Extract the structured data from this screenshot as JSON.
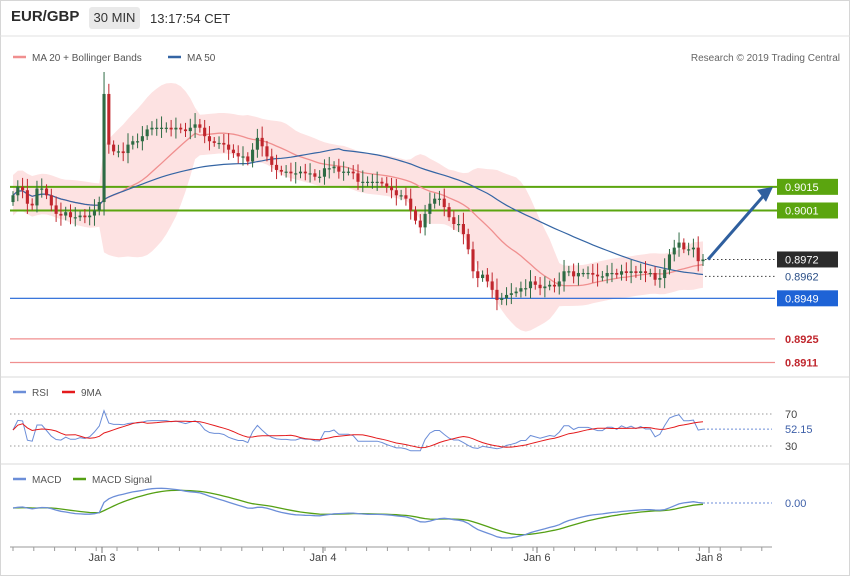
{
  "header": {
    "pair": "EUR/GBP",
    "timeframe": "30 MIN",
    "time": "13:17:54 CET"
  },
  "legend": {
    "ma20": "MA 20 + Bollinger Bands",
    "ma50": "MA 50",
    "rsi": "RSI",
    "ma9": "9MA",
    "macd": "MACD",
    "macd_signal": "MACD Signal"
  },
  "credit": "Research © 2019 Trading Central",
  "colors": {
    "bull": "#2e6b44",
    "bear": "#c0262d",
    "band_fill": "#fde2e2",
    "ma20": "#f08f8f",
    "ma50": "#3465a4",
    "green_level": "#5ba50f",
    "blue_level": "#1e63d6",
    "red_level": "#f08f8f",
    "arrow": "#2f5f9e",
    "rsi": "#6c8ed8",
    "rsi_ma": "#e41a1c",
    "macd": "#6c8ed8",
    "macd_signal": "#55a014"
  },
  "chart_data": [
    {
      "type": "candlestick",
      "title": "EUR/GBP 30 MIN",
      "x_ticks": [
        "Jan 3",
        "Jan 4",
        "Jan 6",
        "Jan 8"
      ],
      "ylim": [
        0.8903,
        0.9083
      ],
      "levels": [
        {
          "value": 0.9015,
          "label": "0.9015",
          "kind": "resistance"
        },
        {
          "value": 0.9001,
          "label": "0.9001",
          "kind": "resistance"
        },
        {
          "value": 0.8972,
          "label": "0.8972",
          "kind": "current"
        },
        {
          "value": 0.8962,
          "label": "0.8962",
          "kind": "ma"
        },
        {
          "value": 0.8949,
          "label": "0.8949",
          "kind": "pivot"
        },
        {
          "value": 0.8925,
          "label": "0.8925",
          "kind": "support"
        },
        {
          "value": 0.8911,
          "label": "0.8911",
          "kind": "support"
        }
      ],
      "closes": [
        0.901,
        0.9015,
        0.9013,
        0.9005,
        0.9004,
        0.9014,
        0.9014,
        0.901,
        0.9004,
        0.8999,
        0.8998,
        0.9,
        0.8997,
        0.8997,
        0.8998,
        0.8997,
        0.8998,
        0.9001,
        0.9006,
        0.907,
        0.904,
        0.9036,
        0.9036,
        0.9035,
        0.904,
        0.9042,
        0.9042,
        0.9045,
        0.9049,
        0.905,
        0.905,
        0.905,
        0.905,
        0.9049,
        0.905,
        0.9049,
        0.9048,
        0.905,
        0.9052,
        0.905,
        0.9045,
        0.9042,
        0.9041,
        0.9041,
        0.904,
        0.9037,
        0.9035,
        0.9033,
        0.9033,
        0.903,
        0.9037,
        0.9044,
        0.9039,
        0.9033,
        0.9028,
        0.9025,
        0.9024,
        0.9024,
        0.9023,
        0.9023,
        0.9024,
        0.9023,
        0.9023,
        0.9021,
        0.9021,
        0.9026,
        0.9026,
        0.9027,
        0.9024,
        0.9024,
        0.9024,
        0.9023,
        0.9018,
        0.9018,
        0.9018,
        0.9018,
        0.9018,
        0.9017,
        0.9015,
        0.9013,
        0.901,
        0.901,
        0.9008,
        0.9001,
        0.8995,
        0.8991,
        0.8999,
        0.9005,
        0.9008,
        0.9008,
        0.9003,
        0.8997,
        0.8993,
        0.8993,
        0.8987,
        0.8978,
        0.8965,
        0.8961,
        0.8963,
        0.8959,
        0.8954,
        0.8948,
        0.8949,
        0.8951,
        0.8952,
        0.8953,
        0.8955,
        0.8955,
        0.8959,
        0.8957,
        0.8955,
        0.8956,
        0.8957,
        0.8956,
        0.8959,
        0.8965,
        0.8965,
        0.8962,
        0.8964,
        0.8964,
        0.8964,
        0.8963,
        0.8962,
        0.8962,
        0.8964,
        0.8964,
        0.8963,
        0.8965,
        0.8964,
        0.8965,
        0.8964,
        0.8965,
        0.8964,
        0.8964,
        0.896,
        0.8961,
        0.8966,
        0.8975,
        0.8979,
        0.8982,
        0.8978,
        0.8978,
        0.8979,
        0.8971,
        0.8972
      ],
      "rsi_ticks": [
        70,
        30
      ],
      "rsi_last": "52.15",
      "macd_last": "0.00"
    }
  ]
}
